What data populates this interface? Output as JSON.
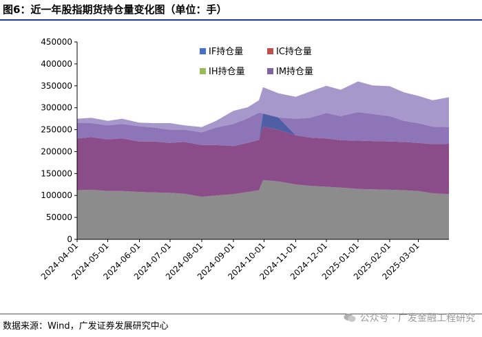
{
  "header": {
    "title": "图6：近一年股指期货持仓量变化图（单位：手）"
  },
  "footer": {
    "source": "数据来源：Wind，广发证券发展研究中心",
    "watermark": "公众号 · 广发金融工程研究"
  },
  "chart_data": {
    "type": "area",
    "stacked": true,
    "title": "",
    "xlabel": "",
    "ylabel": "",
    "ylim": [
      0,
      450000
    ],
    "yticks": [
      0,
      50000,
      100000,
      150000,
      200000,
      250000,
      300000,
      350000,
      400000,
      450000
    ],
    "grid": false,
    "legend_position": "top-center",
    "x": [
      "2024-04-01",
      "2024-04-15",
      "2024-05-01",
      "2024-05-15",
      "2024-06-01",
      "2024-06-15",
      "2024-07-01",
      "2024-07-15",
      "2024-08-01",
      "2024-08-15",
      "2024-09-01",
      "2024-09-15",
      "2024-09-26",
      "2024-09-30",
      "2024-10-15",
      "2024-11-01",
      "2024-11-15",
      "2024-12-01",
      "2024-12-15",
      "2025-01-01",
      "2025-01-15",
      "2025-02-01",
      "2025-02-15",
      "2025-03-01",
      "2025-03-15",
      "2025-03-31"
    ],
    "xticks": [
      "2024-04-01",
      "2024-05-01",
      "2024-06-01",
      "2024-07-01",
      "2024-08-01",
      "2024-09-01",
      "2024-10-01",
      "2024-11-01",
      "2024-12-01",
      "2025-01-01",
      "2025-02-01",
      "2025-03-01"
    ],
    "series": [
      {
        "name": "IF持仓量",
        "color": "#4472c4",
        "values": [
          0,
          0,
          0,
          0,
          0,
          0,
          0,
          0,
          0,
          0,
          0,
          0,
          0,
          30000,
          28000,
          0,
          0,
          0,
          0,
          0,
          0,
          0,
          0,
          0,
          0,
          0
        ]
      },
      {
        "name": "IC持仓量",
        "color": "#c0504d",
        "values": [
          112000,
          113000,
          110000,
          110000,
          108000,
          107000,
          106000,
          104000,
          97000,
          100000,
          103000,
          108000,
          112000,
          135000,
          132000,
          125000,
          122000,
          120000,
          118000,
          115000,
          114000,
          113000,
          112000,
          110000,
          105000,
          103000
        ]
      },
      {
        "name": "IH持仓量",
        "color": "#9bbb59",
        "values": [
          118000,
          120000,
          118000,
          120000,
          115000,
          116000,
          114000,
          118000,
          118000,
          115000,
          110000,
          112000,
          115000,
          122000,
          118000,
          112000,
          110000,
          110000,
          108000,
          110000,
          110000,
          110000,
          110000,
          110000,
          112000,
          115000
        ]
      },
      {
        "name": "IM持仓量",
        "color": "#8064a2",
        "values": [
          35000,
          32000,
          32000,
          33000,
          35000,
          32000,
          30000,
          28000,
          29000,
          40000,
          50000,
          56000,
          62000,
          0,
          0,
          38000,
          45000,
          58000,
          55000,
          65000,
          62000,
          58000,
          48000,
          45000,
          40000,
          38000
        ]
      }
    ],
    "extra_layers": [
      {
        "label": "IM-light",
        "color": "#a493c9",
        "values": [
          10000,
          12000,
          10000,
          12000,
          8000,
          10000,
          15000,
          10000,
          12000,
          15000,
          30000,
          25000,
          28000,
          60000,
          55000,
          50000,
          60000,
          62000,
          60000,
          70000,
          65000,
          68000,
          65000,
          62000,
          60000,
          68000
        ]
      }
    ]
  }
}
